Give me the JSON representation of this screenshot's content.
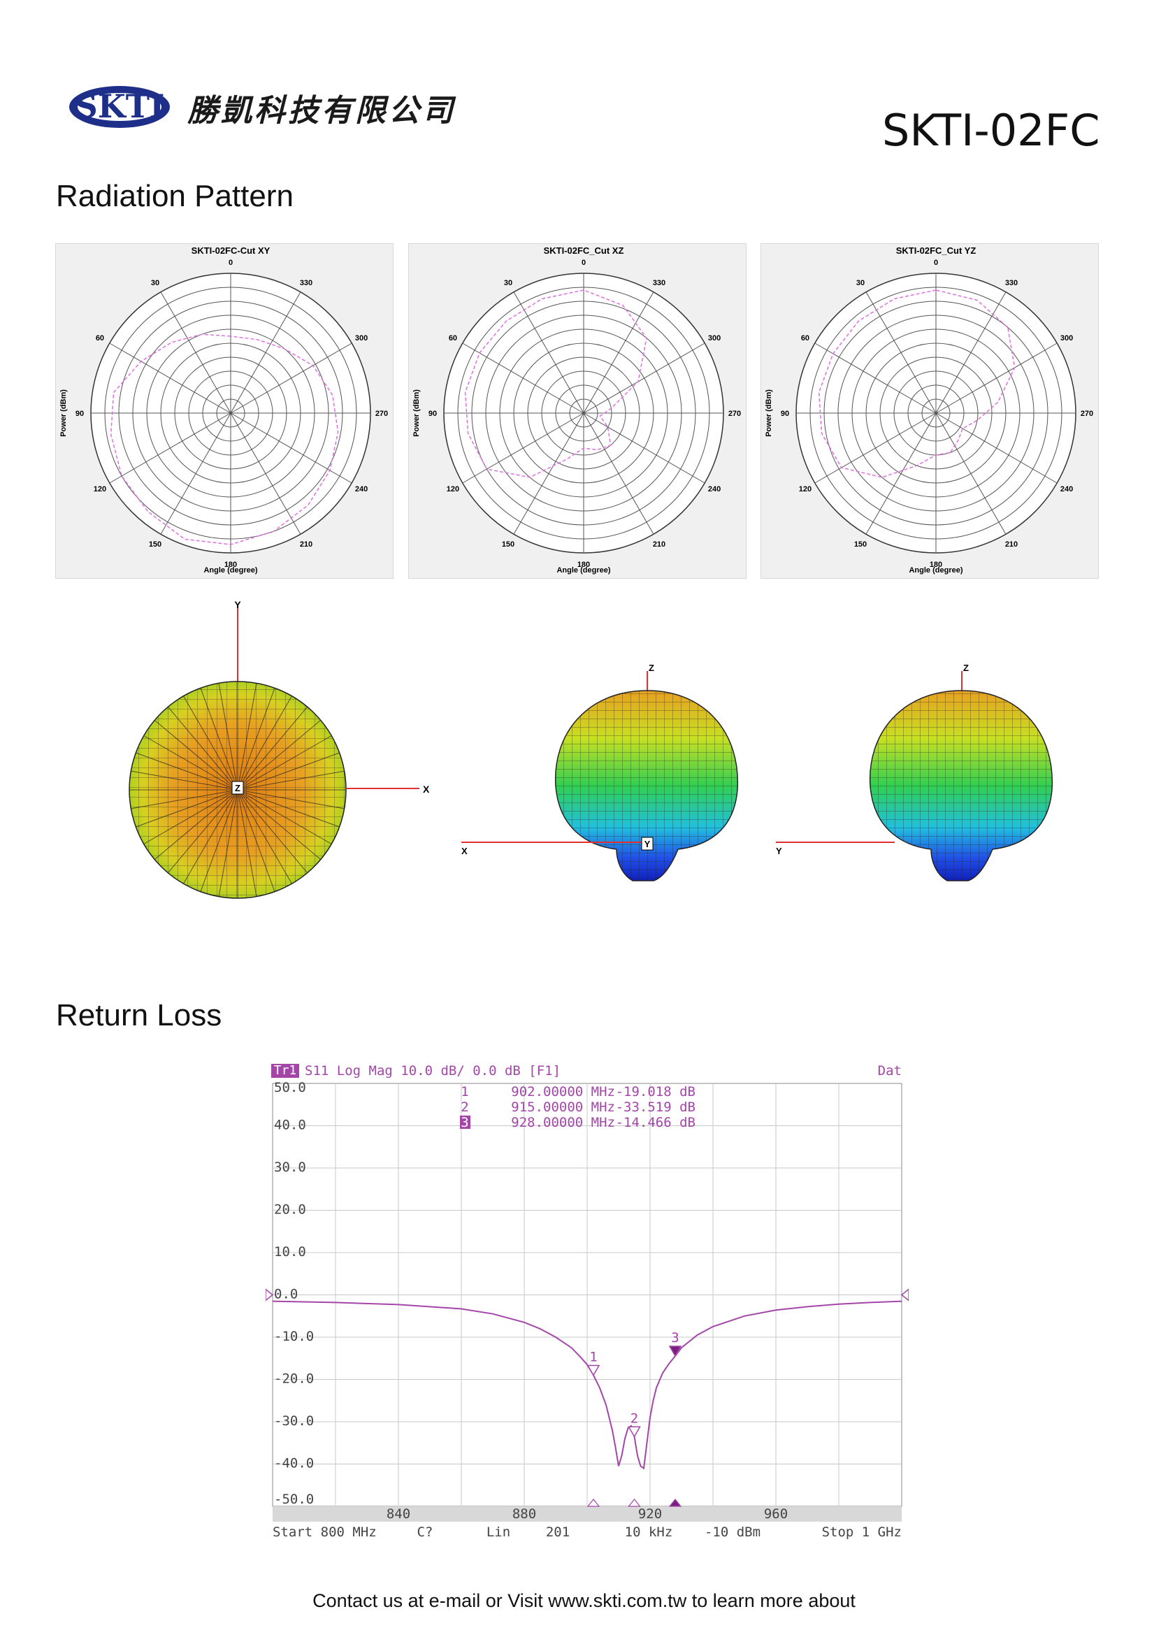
{
  "header": {
    "logo_text": "SKTI",
    "company_name": "勝凱科技有限公司",
    "model": "SKTI-02FC"
  },
  "sections": {
    "radiation": "Radiation Pattern",
    "return_loss": "Return Loss"
  },
  "polar_plots": [
    {
      "title": "SKTI-02FC-Cut XY",
      "trace": [
        0.55,
        0.6,
        0.66,
        0.74,
        0.85,
        0.87,
        0.9,
        0.92,
        0.96,
        0.94,
        0.9,
        0.86,
        0.82,
        0.78,
        0.74,
        0.68,
        0.6,
        0.56
      ]
    },
    {
      "title": "SKTI-02FC_Cut XZ",
      "trace": [
        0.88,
        0.87,
        0.86,
        0.86,
        0.86,
        0.84,
        0.8,
        0.6,
        0.35,
        0.25,
        0.28,
        0.3,
        0.2,
        0.12,
        0.2,
        0.45,
        0.7,
        0.82
      ]
    },
    {
      "title": "SKTI-02FC_Cut YZ",
      "trace": [
        0.88,
        0.87,
        0.86,
        0.85,
        0.85,
        0.83,
        0.78,
        0.6,
        0.4,
        0.3,
        0.3,
        0.25,
        0.22,
        0.3,
        0.45,
        0.65,
        0.8,
        0.86
      ]
    }
  ],
  "polar_labels": {
    "angles": [
      "0",
      "330",
      "300",
      "270",
      "240",
      "210",
      "180",
      "150",
      "120",
      "90",
      "60",
      "30"
    ],
    "xlabel": "Angle (degree)",
    "ylabel": "Power (dBm)"
  },
  "pattern_3d": [
    {
      "axes": [
        "Y",
        "X"
      ],
      "center_label": "Z"
    },
    {
      "axes": [
        "Z",
        "X"
      ],
      "center_label": "Y"
    },
    {
      "axes": [
        "Z",
        "Y"
      ]
    }
  ],
  "vna": {
    "trace_tag": "Tr1",
    "header": "S11 Log Mag 10.0 dB/ 0.0 dB [F1]",
    "status_right": "Dat",
    "markers": [
      {
        "num": "1",
        "freq": "902.00000 MHz",
        "val": "-19.018 dB"
      },
      {
        "num": "2",
        "freq": "915.00000 MHz",
        "val": "-33.519 dB"
      },
      {
        "num": "3",
        "freq": "928.00000 MHz",
        "val": "-14.466 dB"
      }
    ],
    "y_labels": [
      "50.0",
      "40.0",
      "30.0",
      "20.0",
      "10.0",
      "0.0",
      "-10.0",
      "-20.0",
      "-30.0",
      "-40.0",
      "-50.0"
    ],
    "x_labels": [
      "840",
      "880",
      "920",
      "960"
    ],
    "ref_marker": "1",
    "footer": [
      "Start 800 MHz",
      "C?",
      "Lin",
      "201",
      "10 kHz",
      "-10 dBm",
      "Stop 1 GHz"
    ]
  },
  "chart_data": {
    "type": "line",
    "title": "S11 Log Mag 10.0 dB/ 0.0 dB [F1]",
    "xlabel": "",
    "ylabel": "",
    "xlim": [
      800,
      1000
    ],
    "ylim": [
      -50,
      50
    ],
    "series": [
      {
        "name": "S11",
        "x": [
          800,
          820,
          840,
          860,
          870,
          880,
          885,
          890,
          895,
          898,
          900,
          902,
          904,
          906,
          908,
          909,
          910,
          911,
          912,
          913,
          914,
          915,
          916,
          917,
          918,
          919,
          920,
          921,
          922,
          924,
          926,
          928,
          930,
          935,
          940,
          950,
          960,
          970,
          980,
          990,
          1000
        ],
        "y": [
          -1.5,
          -1.8,
          -2.3,
          -3.3,
          -4.5,
          -6.5,
          -8,
          -10,
          -12.5,
          -14.8,
          -16.5,
          -19.0,
          -22,
          -26,
          -32,
          -36,
          -40.5,
          -38,
          -34,
          -31.5,
          -31,
          -33.5,
          -38,
          -40.5,
          -41,
          -35,
          -29,
          -25,
          -22,
          -18.5,
          -16.3,
          -14.466,
          -12.5,
          -9.5,
          -7.5,
          -5,
          -3.6,
          -2.8,
          -2.2,
          -1.8,
          -1.5
        ]
      }
    ],
    "markers": [
      {
        "x": 902,
        "y": -19.018
      },
      {
        "x": 915,
        "y": -33.519
      },
      {
        "x": 928,
        "y": -14.466
      }
    ]
  },
  "colors": {
    "trace": "#a346a8",
    "marker_fill": "#7a1f7e",
    "axis_red": "#e03030",
    "polar_trace": "#e070e0"
  },
  "footer": {
    "contact": "Contact us at e-mail or Visit www.skti.com.tw to learn more about"
  }
}
